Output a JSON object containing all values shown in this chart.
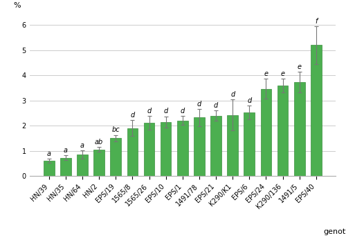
{
  "categories": [
    "HN/39",
    "HN/35",
    "HN/64",
    "HN/2",
    "EPS/19",
    "1565/8",
    "1565/26",
    "EPS/10",
    "EPS/1",
    "1491/78",
    "EPS/21",
    "K290/K1",
    "EPS/6",
    "EPS/24",
    "K290/136",
    "1491/5",
    "EPS/40"
  ],
  "values": [
    0.6,
    0.72,
    0.85,
    1.05,
    1.5,
    1.9,
    2.12,
    2.15,
    2.2,
    2.32,
    2.4,
    2.42,
    2.52,
    3.47,
    3.6,
    3.73,
    5.2
  ],
  "errors": [
    0.08,
    0.1,
    0.17,
    0.1,
    0.13,
    0.32,
    0.27,
    0.22,
    0.18,
    0.35,
    0.2,
    0.62,
    0.28,
    0.4,
    0.27,
    0.42,
    0.75
  ],
  "letters": [
    "a",
    "a",
    "a",
    "ab",
    "bc",
    "d",
    "d",
    "d",
    "d",
    "d",
    "d",
    "d",
    "d",
    "e",
    "e",
    "e",
    "f"
  ],
  "bar_color": "#4CAF50",
  "bar_edge_color": "#388E3C",
  "error_color": "#777777",
  "ylabel": "%",
  "xlabel": "genotype",
  "ylim": [
    0,
    6.5
  ],
  "yticks": [
    0,
    1,
    2,
    3,
    4,
    5,
    6
  ],
  "grid_color": "#cccccc",
  "bar_width": 0.65,
  "figsize": [
    5.0,
    3.61
  ],
  "dpi": 100,
  "letter_fontsize": 7,
  "axis_tick_fontsize": 7,
  "xlabel_fontsize": 8,
  "ylabel_fontsize": 8
}
